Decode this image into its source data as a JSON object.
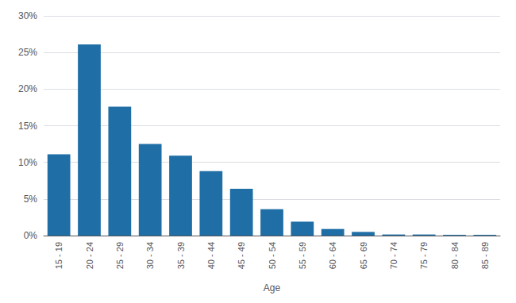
{
  "chart_data": {
    "type": "bar",
    "xlabel": "Age",
    "categories": [
      "15 - 19",
      "20 - 24",
      "25 - 29",
      "30 - 34",
      "35 - 39",
      "40 - 44",
      "45 - 49",
      "50 - 54",
      "55 - 59",
      "60 - 64",
      "65 - 69",
      "70 - 74",
      "75 - 79",
      "80 - 84",
      "85 - 89"
    ],
    "values": [
      11.1,
      26.1,
      17.6,
      12.5,
      10.9,
      8.8,
      6.4,
      3.6,
      1.9,
      0.9,
      0.5,
      0.15,
      0.15,
      0.1,
      0.1
    ],
    "color": "#1F6EA6",
    "ylim": [
      0,
      30
    ],
    "yticks": [
      {
        "value": 0,
        "label": "0%"
      },
      {
        "value": 5,
        "label": "5%"
      },
      {
        "value": 10,
        "label": "10%"
      },
      {
        "value": 15,
        "label": "15%"
      },
      {
        "value": 20,
        "label": "20%"
      },
      {
        "value": 25,
        "label": "25%"
      },
      {
        "value": 30,
        "label": "30%"
      }
    ],
    "grid": true
  }
}
